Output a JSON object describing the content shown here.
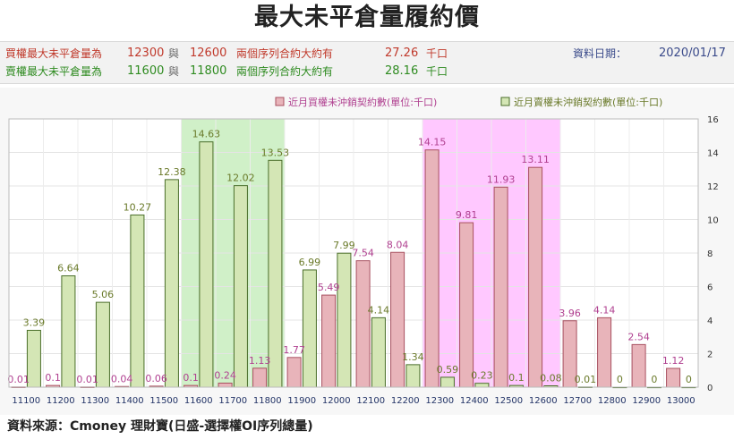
{
  "title": "最大未平倉量履約價",
  "info": {
    "call_label": "買權最大未平倉量為",
    "call_strike_1": "12300",
    "and_1": "與",
    "call_strike_2": "12600",
    "call_ratio_label": "兩個序列合約大約有",
    "call_ratio_value": "27.26",
    "call_unit": "千口",
    "date_label": "資料日期：",
    "date_value": "2020/01/17",
    "put_label": "賣權最大未平倉量為",
    "put_strike_1": "11600",
    "and_2": "與",
    "put_strike_2": "11800",
    "put_ratio_label": "兩個序列合約大約有",
    "put_ratio_value": "28.16",
    "put_unit": "千口"
  },
  "colors": {
    "call_text": "#c0392b",
    "put_text": "#2e8b20",
    "call_bar": "#e8b4ba",
    "call_stroke": "#a85060",
    "put_bar": "#d4e6b5",
    "put_stroke": "#4a6e2a",
    "put_highlight": "#d0f0c8",
    "call_highlight": "#ffc8ff",
    "call_label": "#b04090",
    "put_label": "#6a7a2a"
  },
  "chart_data": {
    "type": "bar",
    "categories": [
      "11100",
      "11200",
      "11300",
      "11400",
      "11500",
      "11600",
      "11700",
      "11800",
      "11900",
      "12000",
      "12100",
      "12200",
      "12300",
      "12400",
      "12500",
      "12600",
      "12700",
      "12800",
      "12900",
      "13000"
    ],
    "series": [
      {
        "name": "近月買權未沖銷契約數(單位:千口)",
        "values": [
          0.01,
          0.1,
          0.01,
          0.04,
          0.06,
          0.1,
          0.24,
          1.13,
          1.77,
          5.49,
          7.54,
          8.04,
          14.15,
          9.81,
          11.93,
          13.11,
          3.96,
          4.14,
          2.54,
          1.12
        ]
      },
      {
        "name": "近月賣權未沖銷契約數(單位:千口)",
        "values": [
          3.39,
          6.64,
          5.06,
          10.27,
          12.38,
          14.63,
          12.02,
          13.53,
          6.99,
          7.99,
          4.14,
          1.34,
          0.59,
          0.23,
          0.1,
          0.08,
          0.01,
          0,
          0,
          0
        ]
      }
    ],
    "yticks": [
      0,
      2,
      4,
      6,
      8,
      10,
      12,
      14,
      16
    ],
    "ylim": [
      0,
      16
    ],
    "y_axis_side": "right",
    "grid": true,
    "legend_position": "top-right",
    "highlight_put_range": [
      "11600",
      "11800"
    ],
    "highlight_call_range": [
      "12300",
      "12600"
    ]
  },
  "source": "資料來源：Cmoney 理財寶(日盛-選擇權OI序列總量)"
}
